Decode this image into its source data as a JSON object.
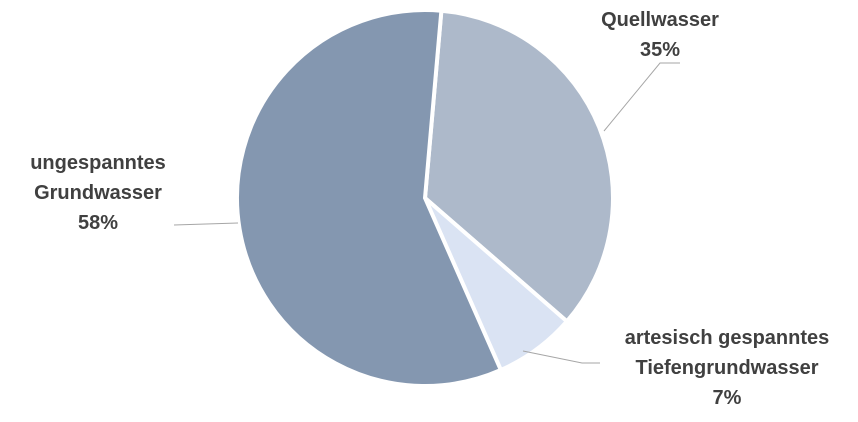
{
  "chart_data": {
    "type": "pie",
    "title": "",
    "categories": [
      "Quellwasser",
      "artesisch gespanntes Tiefengrundwasser",
      "ungespanntes Grundwasser"
    ],
    "values": [
      35,
      7,
      58
    ],
    "unit": "%",
    "start_angle_deg": 5,
    "direction": "clockwise",
    "colors": [
      "#adb9ca",
      "#dae3f3",
      "#8497b0"
    ],
    "labels": [
      {
        "lines": [
          "Quellwasser"
        ],
        "value_text": "35%"
      },
      {
        "lines": [
          "artesisch gespanntes",
          "Tiefengrundwasser"
        ],
        "value_text": "7%"
      },
      {
        "lines": [
          "ungespanntes",
          "Grundwasser"
        ],
        "value_text": "58%"
      }
    ]
  }
}
